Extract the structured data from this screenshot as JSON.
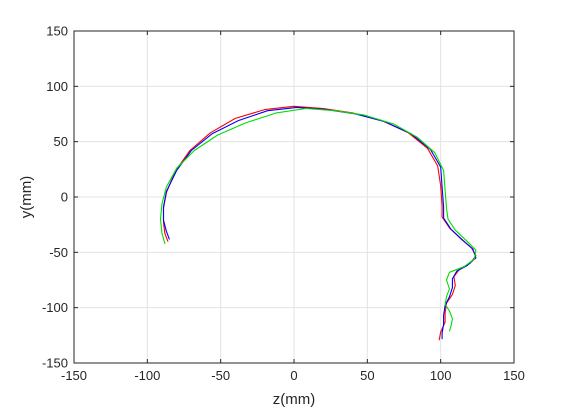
{
  "chart_data": {
    "type": "line",
    "title": "",
    "xlabel": "z(mm)",
    "ylabel": "y(mm)",
    "xlim": [
      -150,
      150
    ],
    "ylim": [
      -150,
      150
    ],
    "xticks": [
      -150,
      -100,
      -50,
      0,
      50,
      100,
      150
    ],
    "yticks": [
      -150,
      -100,
      -50,
      0,
      50,
      100,
      150
    ],
    "grid": true,
    "legend": "none",
    "series": [
      {
        "color": "#ff0000",
        "points": [
          [
            -86,
            -40
          ],
          [
            -88,
            -33
          ],
          [
            -89,
            -23
          ],
          [
            -89,
            -10
          ],
          [
            -87,
            4
          ],
          [
            -81,
            23
          ],
          [
            -71,
            42
          ],
          [
            -57,
            58
          ],
          [
            -40,
            71
          ],
          [
            -20,
            79
          ],
          [
            0,
            82
          ],
          [
            20,
            80
          ],
          [
            40,
            76
          ],
          [
            60,
            69
          ],
          [
            78,
            58
          ],
          [
            91,
            44
          ],
          [
            98,
            28
          ],
          [
            100,
            10
          ],
          [
            101,
            -8
          ],
          [
            101,
            -18
          ],
          [
            106,
            -28
          ],
          [
            114,
            -38
          ],
          [
            121,
            -46
          ],
          [
            124,
            -53
          ],
          [
            120,
            -60
          ],
          [
            113,
            -65
          ],
          [
            109,
            -72
          ],
          [
            110,
            -80
          ],
          [
            108,
            -88
          ],
          [
            104,
            -96
          ],
          [
            103,
            -105
          ],
          [
            103,
            -113
          ],
          [
            100,
            -122
          ],
          [
            99,
            -129
          ]
        ]
      },
      {
        "color": "#0000ff",
        "points": [
          [
            -85,
            -38
          ],
          [
            -87,
            -31
          ],
          [
            -89,
            -21
          ],
          [
            -89,
            -9
          ],
          [
            -87,
            5
          ],
          [
            -80,
            24
          ],
          [
            -70,
            42
          ],
          [
            -56,
            57
          ],
          [
            -38,
            69
          ],
          [
            -18,
            78
          ],
          [
            2,
            81
          ],
          [
            22,
            79
          ],
          [
            42,
            75
          ],
          [
            62,
            68
          ],
          [
            80,
            57
          ],
          [
            93,
            43
          ],
          [
            100,
            27
          ],
          [
            101,
            9
          ],
          [
            102,
            -9
          ],
          [
            102,
            -19
          ],
          [
            107,
            -29
          ],
          [
            115,
            -39
          ],
          [
            122,
            -47
          ],
          [
            124,
            -55
          ],
          [
            118,
            -62
          ],
          [
            111,
            -67
          ],
          [
            108,
            -74
          ],
          [
            108,
            -82
          ],
          [
            106,
            -90
          ],
          [
            103,
            -98
          ],
          [
            102,
            -107
          ],
          [
            102,
            -115
          ],
          [
            101,
            -123
          ],
          [
            101,
            -128
          ]
        ]
      },
      {
        "color": "#00dd00",
        "points": [
          [
            -88,
            -42
          ],
          [
            -90,
            -33
          ],
          [
            -91,
            -20
          ],
          [
            -90,
            -6
          ],
          [
            -87,
            9
          ],
          [
            -80,
            26
          ],
          [
            -68,
            42
          ],
          [
            -52,
            56
          ],
          [
            -33,
            67
          ],
          [
            -12,
            76
          ],
          [
            8,
            80
          ],
          [
            28,
            78
          ],
          [
            48,
            74
          ],
          [
            68,
            66
          ],
          [
            84,
            54
          ],
          [
            96,
            40
          ],
          [
            102,
            24
          ],
          [
            103,
            6
          ],
          [
            104,
            -10
          ],
          [
            105,
            -20
          ],
          [
            110,
            -30
          ],
          [
            118,
            -40
          ],
          [
            124,
            -48
          ],
          [
            123,
            -56
          ],
          [
            116,
            -63
          ],
          [
            106,
            -68
          ],
          [
            104,
            -75
          ],
          [
            106,
            -83
          ],
          [
            104,
            -90
          ],
          [
            103,
            -97
          ],
          [
            106,
            -103
          ],
          [
            108,
            -110
          ],
          [
            107,
            -117
          ],
          [
            106,
            -121
          ]
        ]
      }
    ]
  }
}
